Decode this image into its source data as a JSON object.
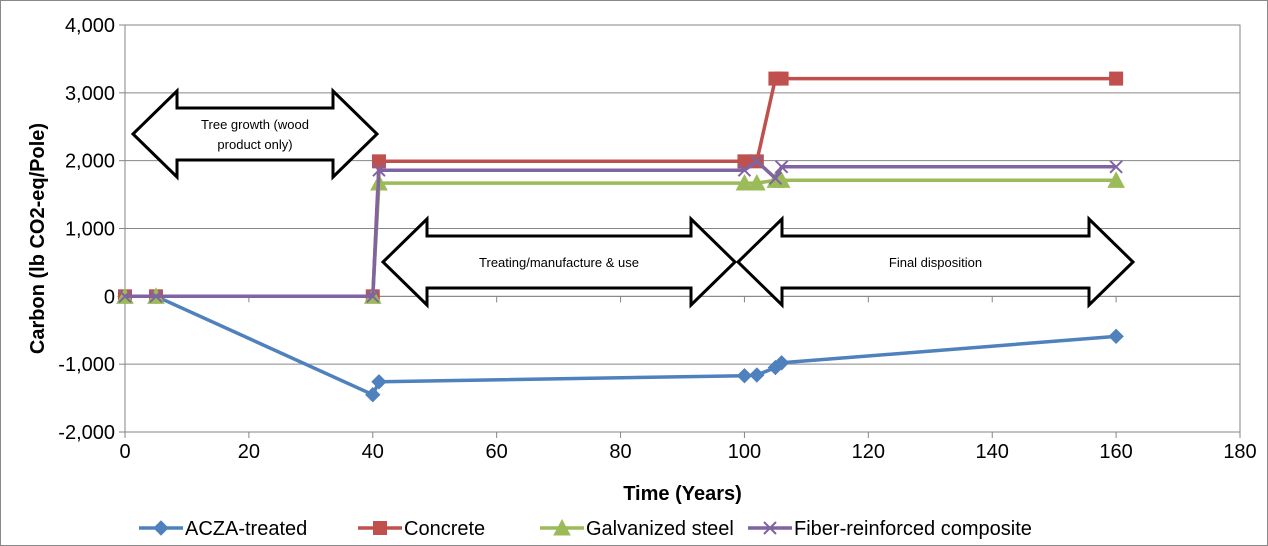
{
  "chart_data": {
    "type": "line",
    "xlabel": "Time (Years)",
    "ylabel": "Carbon (lb CO2-eq/Pole)",
    "xlim": [
      0,
      180
    ],
    "ylim": [
      -2000,
      4000
    ],
    "x_ticks": [
      0,
      20,
      40,
      60,
      80,
      100,
      120,
      140,
      160,
      180
    ],
    "x_tick_labels": [
      "0",
      "20",
      "40",
      "60",
      "80",
      "100",
      "120",
      "140",
      "160",
      "180"
    ],
    "y_ticks": [
      4000,
      3000,
      2000,
      1000,
      0,
      -1000,
      -2000
    ],
    "y_tick_labels": [
      "4,000",
      "3,000",
      "2,000",
      "1,000",
      "0",
      "-1,000",
      "-2,000"
    ],
    "grid": "horizontal",
    "legend_position": "bottom",
    "series": [
      {
        "name": "ACZA-treated",
        "color": "#4f81bd",
        "marker": "diamond",
        "points": [
          [
            0,
            0
          ],
          [
            5,
            0
          ],
          [
            40,
            -1450
          ],
          [
            41,
            -1260
          ],
          [
            100,
            -1170
          ],
          [
            102,
            -1160
          ],
          [
            105,
            -1050
          ],
          [
            106,
            -980
          ],
          [
            160,
            -590
          ]
        ]
      },
      {
        "name": "Concrete",
        "color": "#c0504d",
        "marker": "square",
        "points": [
          [
            0,
            0
          ],
          [
            5,
            0
          ],
          [
            40,
            0
          ],
          [
            41,
            1990
          ],
          [
            100,
            1990
          ],
          [
            102,
            1990
          ],
          [
            105,
            3210
          ],
          [
            106,
            3210
          ],
          [
            160,
            3210
          ]
        ]
      },
      {
        "name": "Galvanized steel",
        "color": "#9bbb59",
        "marker": "triangle",
        "points": [
          [
            0,
            0
          ],
          [
            5,
            0
          ],
          [
            40,
            0
          ],
          [
            41,
            1670
          ],
          [
            100,
            1670
          ],
          [
            102,
            1670
          ],
          [
            105,
            1710
          ],
          [
            106,
            1710
          ],
          [
            160,
            1710
          ]
        ]
      },
      {
        "name": "Fiber-reinforced composite",
        "color": "#8064a2",
        "marker": "x",
        "points": [
          [
            0,
            0
          ],
          [
            5,
            0
          ],
          [
            40,
            0
          ],
          [
            41,
            1860
          ],
          [
            100,
            1860
          ],
          [
            102,
            1990
          ],
          [
            105,
            1740
          ],
          [
            106,
            1910
          ],
          [
            160,
            1910
          ]
        ]
      }
    ],
    "annotations": [
      {
        "lines": [
          "Tree growth (wood",
          "product only)"
        ]
      },
      {
        "lines": [
          "Treating/manufacture & use"
        ]
      },
      {
        "lines": [
          "Final disposition"
        ]
      }
    ]
  }
}
